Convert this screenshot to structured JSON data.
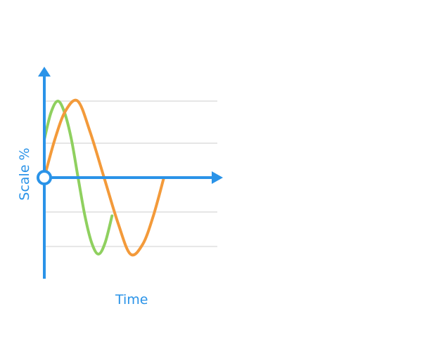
{
  "chart_data": {
    "type": "line",
    "xlabel": "Time",
    "ylabel": "Scale %",
    "title": "",
    "grid": true,
    "legend": "none",
    "x_tick_labels": [],
    "y_tick_labels": [],
    "xlim": [
      0,
      1
    ],
    "ylim": [
      -1.55,
      1.75
    ],
    "gridlines_y": [
      1,
      0.45,
      -0.45,
      -0.9
    ],
    "series": [
      {
        "color": "#8fd05f",
        "values": [
          {
            "x": 0.0,
            "y": 0.5
          },
          {
            "x": 0.038,
            "y": 0.85
          },
          {
            "x": 0.077,
            "y": 1.0
          },
          {
            "x": 0.115,
            "y": 0.85
          },
          {
            "x": 0.154,
            "y": 0.5
          },
          {
            "x": 0.192,
            "y": 0.0
          },
          {
            "x": 0.231,
            "y": -0.5
          },
          {
            "x": 0.269,
            "y": -0.85
          },
          {
            "x": 0.308,
            "y": -1.0
          },
          {
            "x": 0.346,
            "y": -0.85
          },
          {
            "x": 0.385,
            "y": -0.5
          }
        ]
      },
      {
        "color": "#f39a3a",
        "values": [
          {
            "x": 0.0,
            "y": 0.0
          },
          {
            "x": 0.06,
            "y": 0.5
          },
          {
            "x": 0.12,
            "y": 0.87
          },
          {
            "x": 0.19,
            "y": 1.0
          },
          {
            "x": 0.26,
            "y": 0.6
          },
          {
            "x": 0.34,
            "y": 0.0
          },
          {
            "x": 0.42,
            "y": -0.6
          },
          {
            "x": 0.49,
            "y": -1.0
          },
          {
            "x": 0.56,
            "y": -0.87
          },
          {
            "x": 0.62,
            "y": -0.5
          },
          {
            "x": 0.68,
            "y": 0.0
          }
        ]
      }
    ],
    "axis_color": "#2a93e8",
    "grid_color": "#e6e6e6",
    "origin_marker": "hollow-circle"
  }
}
